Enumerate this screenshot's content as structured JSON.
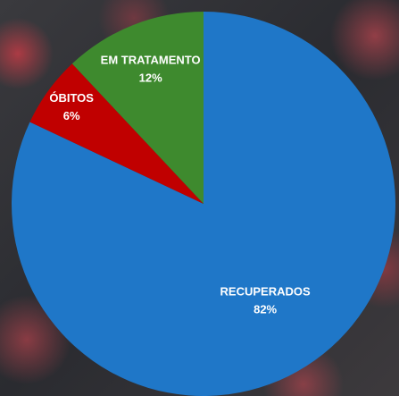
{
  "chart_data": {
    "type": "pie",
    "categories": [
      "RECUPERADOS",
      "ÓBITOS",
      "EM TRATAMENTO"
    ],
    "values": [
      82,
      6,
      12
    ],
    "value_labels": [
      "82%",
      "6%",
      "12%"
    ],
    "colors": [
      "#1f77c8",
      "#c00000",
      "#3e8a2e"
    ]
  }
}
